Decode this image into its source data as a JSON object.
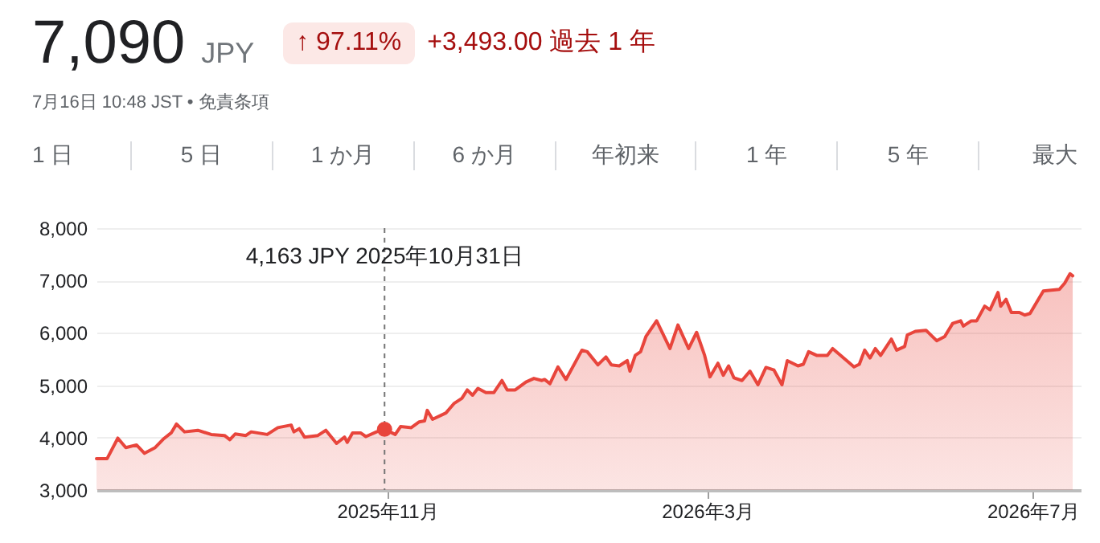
{
  "chart_data": {
    "type": "area",
    "title": "7,090",
    "subtitle": "JPY",
    "annotations": [
      "↑ 97.11%",
      "+3,493.00 過去 1 年",
      "7月16日 10:48 JST • 免責条項",
      "1 日",
      "5 日",
      "1 か月",
      "6 か月",
      "年初来",
      "1 年",
      "5 年",
      "最大",
      "4,163 JPY  2025年10月31日"
    ],
    "x": [
      "2025-07-15",
      "2025-07-19",
      "2025-07-23",
      "2025-07-26",
      "2025-07-30",
      "2025-08-02",
      "2025-08-06",
      "2025-08-09",
      "2025-08-12",
      "2025-08-14",
      "2025-08-17",
      "2025-08-22",
      "2025-08-27",
      "2025-09-01",
      "2025-09-03",
      "2025-09-05",
      "2025-09-09",
      "2025-09-11",
      "2025-09-17",
      "2025-09-21",
      "2025-09-26",
      "2025-09-27",
      "2025-09-29",
      "2025-10-01",
      "2025-10-06",
      "2025-10-09",
      "2025-10-13",
      "2025-10-16",
      "2025-10-17",
      "2025-10-19",
      "2025-10-22",
      "2025-10-24",
      "2025-10-28",
      "2025-10-31",
      "2025-11-04",
      "2025-11-06",
      "2025-11-10",
      "2025-11-13",
      "2025-11-15",
      "2025-11-16",
      "2025-11-18",
      "2025-11-23",
      "2025-11-26",
      "2025-11-29",
      "2025-12-01",
      "2025-12-03",
      "2025-12-05",
      "2025-12-08",
      "2025-12-11",
      "2025-12-14",
      "2025-12-16",
      "2025-12-19",
      "2025-12-23",
      "2025-12-26",
      "2025-12-29",
      "2025-12-30",
      "2026-01-01",
      "2026-01-04",
      "2026-01-07",
      "2026-01-13",
      "2026-01-15",
      "2026-01-19",
      "2026-01-22",
      "2026-01-24",
      "2026-01-27",
      "2026-01-30",
      "2026-01-31",
      "2026-02-02",
      "2026-02-04",
      "2026-02-06",
      "2026-02-10",
      "2026-02-15",
      "2026-02-18",
      "2026-02-22",
      "2026-02-25",
      "2026-02-28",
      "2026-03-02",
      "2026-03-05",
      "2026-03-07",
      "2026-03-09",
      "2026-03-11",
      "2026-03-14",
      "2026-03-17",
      "2026-03-20",
      "2026-03-23",
      "2026-03-26",
      "2026-03-29",
      "2026-03-31",
      "2026-04-04",
      "2026-04-06",
      "2026-04-08",
      "2026-04-11",
      "2026-04-15",
      "2026-04-17",
      "2026-04-20",
      "2026-04-25",
      "2026-04-27",
      "2026-04-29",
      "2026-05-01",
      "2026-05-03",
      "2026-05-05",
      "2026-05-09",
      "2026-05-11",
      "2026-05-14",
      "2026-05-15",
      "2026-05-18",
      "2026-05-22",
      "2026-05-26",
      "2026-05-29",
      "2026-06-01",
      "2026-06-04",
      "2026-06-05",
      "2026-06-08",
      "2026-06-10",
      "2026-06-13",
      "2026-06-15",
      "2026-06-18",
      "2026-06-19",
      "2026-06-21",
      "2026-06-23",
      "2026-06-26",
      "2026-06-28",
      "2026-06-30",
      "2026-07-05",
      "2026-07-11",
      "2026-07-13",
      "2026-07-15",
      "2026-07-16"
    ],
    "series": [
      {
        "color": "#e8453c",
        "values": [
          3600,
          3600,
          3990,
          3810,
          3860,
          3700,
          3810,
          3970,
          4090,
          4260,
          4110,
          4140,
          4060,
          4040,
          3960,
          4070,
          4040,
          4110,
          4060,
          4190,
          4240,
          4110,
          4170,
          4010,
          4040,
          4140,
          3890,
          4010,
          3910,
          4090,
          4090,
          4020,
          4110,
          4160,
          4060,
          4210,
          4190,
          4300,
          4320,
          4520,
          4350,
          4470,
          4650,
          4750,
          4910,
          4810,
          4940,
          4860,
          4860,
          5090,
          4910,
          4910,
          5060,
          5130,
          5090,
          5110,
          5030,
          5350,
          5110,
          5670,
          5640,
          5390,
          5540,
          5390,
          5370,
          5470,
          5270,
          5570,
          5640,
          5930,
          6230,
          5700,
          6150,
          5700,
          6010,
          5570,
          5160,
          5420,
          5190,
          5370,
          5140,
          5090,
          5270,
          5010,
          5340,
          5290,
          5010,
          5470,
          5370,
          5400,
          5640,
          5570,
          5570,
          5700,
          5570,
          5350,
          5400,
          5670,
          5520,
          5700,
          5570,
          5880,
          5670,
          5740,
          5960,
          6030,
          6050,
          5850,
          5930,
          6180,
          6230,
          6130,
          6230,
          6230,
          6510,
          6440,
          6770,
          6510,
          6640,
          6390,
          6390,
          6340,
          6370,
          6800,
          6830,
          6950,
          7130,
          7090
        ]
      }
    ],
    "xlim": [
      "2025-07-15",
      "2026-07-19"
    ],
    "xticks": [
      {
        "value": "2025-11-01",
        "label": "2025年11月"
      },
      {
        "value": "2026-03-01",
        "label": "2026年3月"
      },
      {
        "value": "2026-07-01",
        "label": "2026年7月"
      }
    ],
    "ylim": [
      3000,
      8000
    ],
    "yticks": [
      {
        "value": 3000,
        "label": "3,000"
      },
      {
        "value": 4000,
        "label": "4,000"
      },
      {
        "value": 5000,
        "label": "5,000"
      },
      {
        "value": 6000,
        "label": "6,000"
      },
      {
        "value": 7000,
        "label": "7,000"
      },
      {
        "value": 8000,
        "label": "8,000"
      }
    ],
    "grid": "y",
    "ref_lines": [
      {
        "axis": "x",
        "value": "2025-10-31",
        "line_style": "dashed",
        "color": "#757575"
      }
    ]
  }
}
